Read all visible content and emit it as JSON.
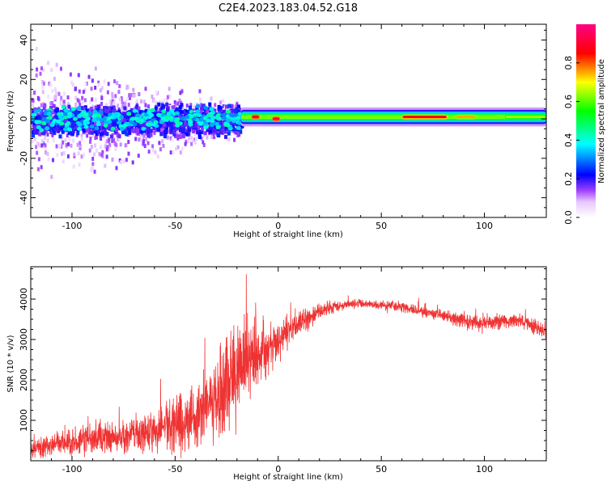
{
  "title": "C2E4.2023.183.04.52.G18",
  "chart_data": [
    {
      "type": "heatmap",
      "name": "spectrogram",
      "xlabel": "Height of straight line (km)",
      "ylabel": "Frequency (Hz)",
      "xlim": [
        -120,
        130
      ],
      "ylim": [
        -50,
        48
      ],
      "x_ticks": [
        -100,
        -50,
        0,
        50,
        100
      ],
      "y_ticks": [
        -40,
        -20,
        0,
        20,
        40
      ],
      "colorbar": {
        "label": "Normalized spectral amplitude",
        "range": [
          0,
          1
        ],
        "ticks": [
          0.0,
          0.2,
          0.4,
          0.6,
          0.8
        ]
      },
      "description_series": [
        {
          "segment": "noisy",
          "x_range": [
            -120,
            -18
          ],
          "freq_center_hz": 0,
          "freq_halfwidth_hz": 8,
          "typical_amplitude": 0.3
        },
        {
          "segment": "stable",
          "x_range": [
            -18,
            130
          ],
          "freq_center_hz": 1,
          "freq_halfwidth_hz": 3,
          "typical_amplitude": 0.6
        }
      ],
      "peak_regions": [
        {
          "x_range": [
            -13,
            -9
          ],
          "freq_hz": 1,
          "amplitude": 0.9
        },
        {
          "x_range": [
            -3,
            1
          ],
          "freq_hz": 0,
          "amplitude": 0.9
        },
        {
          "x_range": [
            60,
            82
          ],
          "freq_hz": 1,
          "amplitude": 0.85
        },
        {
          "x_range": [
            86,
            96
          ],
          "freq_hz": 1,
          "amplitude": 0.75
        },
        {
          "x_range": [
            110,
            130
          ],
          "freq_hz": 1,
          "amplitude": 0.65
        }
      ]
    },
    {
      "type": "line",
      "name": "snr",
      "xlabel": "Height of straight line (km)",
      "ylabel": "SNR (10 * v/v)",
      "xlim": [
        -120,
        130
      ],
      "ylim": [
        0,
        4800
      ],
      "x_ticks": [
        -100,
        -50,
        0,
        50,
        100
      ],
      "y_ticks": [
        1000,
        2000,
        3000,
        4000
      ],
      "color": "#ef3333",
      "envelope": {
        "x": [
          -120,
          -110,
          -100,
          -90,
          -80,
          -70,
          -60,
          -50,
          -40,
          -30,
          -20,
          -15,
          -10,
          -5,
          0,
          10,
          20,
          30,
          40,
          50,
          60,
          70,
          80,
          90,
          100,
          110,
          120,
          130
        ],
        "mean": [
          300,
          400,
          450,
          500,
          600,
          650,
          750,
          900,
          1100,
          1500,
          2200,
          2400,
          2500,
          2700,
          3000,
          3400,
          3700,
          3850,
          3900,
          3850,
          3800,
          3700,
          3600,
          3450,
          3400,
          3450,
          3450,
          3150
        ],
        "spread": [
          300,
          350,
          350,
          400,
          450,
          500,
          550,
          700,
          900,
          1100,
          1300,
          1200,
          1000,
          800,
          600,
          350,
          200,
          150,
          120,
          120,
          150,
          150,
          150,
          200,
          250,
          200,
          200,
          200
        ]
      }
    }
  ]
}
